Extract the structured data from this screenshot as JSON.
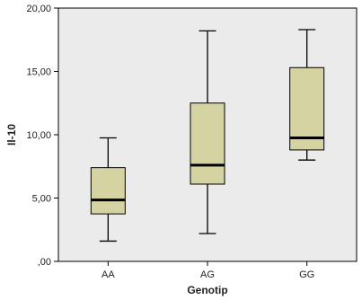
{
  "chart_data": {
    "type": "boxplot",
    "xlabel": "Genotip",
    "ylabel": "Il-10",
    "ylim": [
      0,
      20
    ],
    "y_ticks": [
      {
        "value": 0,
        "label": ",00"
      },
      {
        "value": 5,
        "label": "5,00"
      },
      {
        "value": 10,
        "label": "10,00"
      },
      {
        "value": 15,
        "label": "15,00"
      },
      {
        "value": 20,
        "label": "20,00"
      }
    ],
    "categories": [
      "AA",
      "AG",
      "GG"
    ],
    "boxes": [
      {
        "category": "AA",
        "min": 1.6,
        "q1": 3.75,
        "median": 4.85,
        "q3": 7.4,
        "max": 9.75
      },
      {
        "category": "AG",
        "min": 2.2,
        "q1": 6.1,
        "median": 7.6,
        "q3": 12.5,
        "max": 18.2
      },
      {
        "category": "GG",
        "min": 8.0,
        "q1": 8.8,
        "median": 9.75,
        "q3": 15.3,
        "max": 18.3
      }
    ],
    "grid": false,
    "colors": {
      "plot_background": "#ebebeb",
      "box_fill": "#d6d3a3",
      "line": "#000000"
    }
  }
}
